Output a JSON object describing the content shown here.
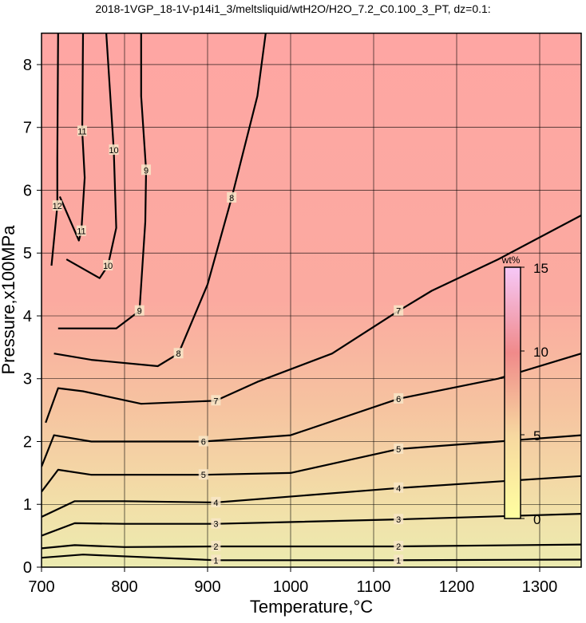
{
  "chart_data": {
    "type": "contour",
    "title": "2018-1VGP_18-1V-p14i1_3/meltsliquid/wtH2O/H2O_7.2_C0.100_3_PT, dz=0.1:",
    "x_label": "Temperature,°C",
    "y_label": "Pressure,x100MPa",
    "xlim": [
      700,
      1350
    ],
    "xticks": [
      700,
      800,
      900,
      1000,
      1100,
      1200,
      1300
    ],
    "ylim": [
      0,
      8.5
    ],
    "yticks": [
      0,
      1,
      2,
      3,
      4,
      5,
      6,
      7,
      8
    ],
    "grid": true,
    "contours": [
      {
        "level": 1,
        "x": [
          700,
          750,
          910,
          1130,
          1350
        ],
        "y": [
          0.15,
          0.2,
          0.11,
          0.11,
          0.12
        ]
      },
      {
        "level": 2,
        "x": [
          700,
          740,
          800,
          910,
          1130,
          1350
        ],
        "y": [
          0.3,
          0.35,
          0.32,
          0.33,
          0.33,
          0.36
        ]
      },
      {
        "level": 3,
        "x": [
          700,
          740,
          800,
          910,
          1130,
          1350
        ],
        "y": [
          0.5,
          0.7,
          0.69,
          0.69,
          0.76,
          0.85
        ]
      },
      {
        "level": 4,
        "x": [
          700,
          740,
          800,
          910,
          1130,
          1350
        ],
        "y": [
          0.8,
          1.05,
          1.05,
          1.03,
          1.26,
          1.45
        ]
      },
      {
        "level": 5,
        "x": [
          700,
          720,
          760,
          895,
          1000,
          1130,
          1250,
          1350
        ],
        "y": [
          1.2,
          1.55,
          1.47,
          1.47,
          1.5,
          1.88,
          2.0,
          2.1
        ]
      },
      {
        "level": 6,
        "x": [
          700,
          715,
          760,
          895,
          1000,
          1130,
          1250,
          1350
        ],
        "y": [
          1.6,
          2.1,
          2.0,
          2.0,
          2.1,
          2.68,
          3.0,
          3.4
        ]
      },
      {
        "level": 7,
        "x": [
          705,
          720,
          750,
          820,
          910,
          960,
          1050,
          1130,
          1170,
          1250,
          1350
        ],
        "y": [
          2.3,
          2.85,
          2.8,
          2.6,
          2.65,
          2.95,
          3.4,
          4.08,
          4.4,
          4.9,
          5.6
        ]
      },
      {
        "level": 8,
        "x": [
          715,
          760,
          840,
          865,
          900,
          929,
          960,
          970
        ],
        "y": [
          3.4,
          3.3,
          3.2,
          3.4,
          4.5,
          5.88,
          7.5,
          8.5
        ]
      },
      {
        "level": 9,
        "x": [
          720,
          790,
          818,
          825,
          826,
          820,
          820
        ],
        "y": [
          3.8,
          3.8,
          4.08,
          5.5,
          6.32,
          7.5,
          8.5
        ]
      },
      {
        "level": 10,
        "x": [
          730,
          770,
          780,
          790,
          787,
          778
        ],
        "y": [
          4.9,
          4.6,
          4.8,
          5.4,
          6.64,
          8.5
        ]
      },
      {
        "level": 11,
        "x": [
          722,
          745,
          748,
          752,
          749,
          750
        ],
        "y": [
          5.9,
          5.2,
          5.35,
          6.2,
          6.94,
          8.5
        ]
      },
      {
        "level": 12,
        "x": [
          712,
          719,
          719,
          720
        ],
        "y": [
          4.8,
          5.75,
          6.5,
          8.5
        ]
      }
    ],
    "colorbar": {
      "label": "wt%",
      "lim": [
        0,
        15
      ],
      "ticks": [
        0,
        5,
        10,
        15
      ]
    }
  }
}
